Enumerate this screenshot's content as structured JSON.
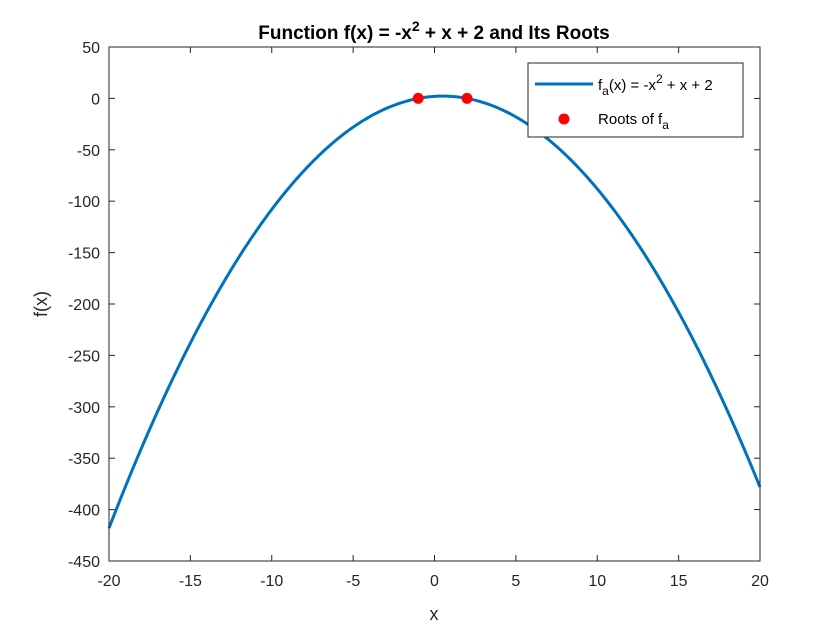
{
  "chart_data": {
    "type": "line",
    "title": {
      "pre": "Function f(x) = -x",
      "sup": "2",
      "post": " + x + 2 and Its Roots"
    },
    "xlabel": "x",
    "ylabel": "f(x)",
    "xlim": [
      -20,
      20
    ],
    "ylim": [
      -450,
      50
    ],
    "xticks": [
      -20,
      -15,
      -10,
      -5,
      0,
      5,
      10,
      15,
      20
    ],
    "yticks": [
      -450,
      -400,
      -350,
      -300,
      -250,
      -200,
      -150,
      -100,
      -50,
      0,
      50
    ],
    "grid": false,
    "legend_position": "top-right",
    "series": [
      {
        "name": "f_a(x) = -x^2 + x + 2",
        "kind": "line",
        "color": "#0072BD",
        "function": "-x^2 + x + 2",
        "x": [
          -20,
          -15,
          -10,
          -5,
          -1,
          0,
          0.5,
          2,
          5,
          10,
          15,
          20
        ],
        "y": [
          -418,
          -238,
          -108,
          -28,
          0,
          2,
          2.25,
          0,
          -18,
          -88,
          -208,
          -378
        ]
      },
      {
        "name": "Roots of f_a",
        "kind": "scatter",
        "color": "#FF0000",
        "x": [
          -1,
          2
        ],
        "y": [
          0,
          0
        ]
      }
    ],
    "legend": [
      {
        "base": "f",
        "sub": "a",
        "rest": "(x) = -x",
        "sup": "2",
        "tail": " + x + 2"
      },
      {
        "base": "Roots of f",
        "sub": "a"
      }
    ]
  }
}
